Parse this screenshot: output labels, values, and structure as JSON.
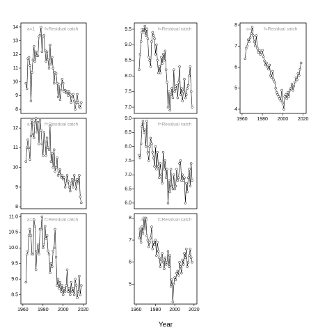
{
  "chart_data": [
    {
      "type": "line",
      "annotations": [
        "a=1",
        "f=Residual catch"
      ],
      "x": [
        1963,
        1964,
        1965,
        1966,
        1967,
        1968,
        1969,
        1970,
        1971,
        1972,
        1973,
        1974,
        1975,
        1976,
        1977,
        1978,
        1979,
        1980,
        1981,
        1982,
        1983,
        1984,
        1985,
        1986,
        1987,
        1988,
        1989,
        1990,
        1991,
        1992,
        1993,
        1994,
        1995,
        1996,
        1997,
        1998,
        1999,
        2000,
        2001,
        2002,
        2003,
        2004,
        2005,
        2006,
        2007,
        2008,
        2009,
        2010,
        2011,
        2012,
        2013,
        2014,
        2015,
        2016,
        2017,
        2018
      ],
      "values": [
        9.9,
        9.5,
        11.7,
        11.8,
        11.2,
        8.6,
        10.7,
        11.6,
        12.6,
        11.5,
        12.2,
        11.9,
        11.9,
        13.3,
        13.4,
        14.0,
        12.2,
        13.3,
        13.4,
        12.3,
        11.5,
        12.2,
        11.6,
        11.0,
        12.7,
        11.3,
        11.8,
        11.0,
        9.9,
        10.7,
        10.6,
        9.9,
        8.9,
        9.8,
        8.7,
        9.4,
        10.2,
        9.9,
        9.3,
        9.4,
        9.2,
        9.3,
        9.0,
        9.3,
        9.1,
        8.5,
        8.9,
        9.1,
        8.6,
        8.0,
        8.5,
        9.1,
        8.5,
        8.2,
        8.1,
        8.5
      ],
      "xlim": [
        1958,
        2023
      ],
      "ylim": [
        7.7,
        14.3
      ],
      "yticks": [
        8,
        9,
        10,
        11,
        12,
        13,
        14
      ]
    },
    {
      "type": "line",
      "annotations": [
        "a=1",
        "f=Residual catch"
      ],
      "x": [
        1963,
        1964,
        1965,
        1966,
        1967,
        1968,
        1969,
        1970,
        1971,
        1972,
        1973,
        1974,
        1975,
        1976,
        1977,
        1978,
        1979,
        1980,
        1981,
        1982,
        1983,
        1984,
        1985,
        1986,
        1987,
        1988,
        1989,
        1990,
        1991,
        1992,
        1993,
        1994,
        1995,
        1996,
        1997,
        1998,
        1999,
        2000,
        2001,
        2002,
        2003,
        2004,
        2005,
        2006,
        2007,
        2008,
        2009,
        2010,
        2011,
        2012,
        2013,
        2014,
        2015,
        2016,
        2017,
        2018
      ],
      "values": [
        8.2,
        8.7,
        9.1,
        9.4,
        9.5,
        9.4,
        9.6,
        9.3,
        9.5,
        9.2,
        8.6,
        8.5,
        8.3,
        9.1,
        9.4,
        9.3,
        9.2,
        8.7,
        9.0,
        8.5,
        8.1,
        8.3,
        8.1,
        8.6,
        8.4,
        8.7,
        8.5,
        8.8,
        8.2,
        7.8,
        7.0,
        7.5,
        6.9,
        7.4,
        7.6,
        7.3,
        8.2,
        7.5,
        7.6,
        7.7,
        7.3,
        7.8,
        8.3,
        7.4,
        7.6,
        7.2,
        7.5,
        7.9,
        7.3,
        7.4,
        7.6,
        7.7,
        8.0,
        8.3,
        7.5,
        7.0
      ],
      "xlim": [
        1958,
        2023
      ],
      "ylim": [
        6.8,
        9.7
      ],
      "yticks": [
        {
          "value": 7,
          "label": "7.0"
        },
        7.5,
        {
          "value": 8,
          "label": "8.0"
        },
        8.5,
        {
          "value": 9,
          "label": "9.0"
        },
        9.5
      ]
    },
    {
      "type": "line",
      "annotations": [
        "a=1",
        "f=Residual catch"
      ],
      "x": [
        1963,
        1964,
        1965,
        1966,
        1967,
        1968,
        1969,
        1970,
        1971,
        1972,
        1973,
        1974,
        1975,
        1976,
        1977,
        1978,
        1979,
        1980,
        1981,
        1982,
        1983,
        1984,
        1985,
        1986,
        1987,
        1988,
        1989,
        1990,
        1991,
        1992,
        1993,
        1994,
        1995,
        1996,
        1997,
        1998,
        1999,
        2000,
        2001,
        2002,
        2003,
        2004,
        2005,
        2006,
        2007,
        2008,
        2009,
        2010,
        2011,
        2012,
        2013,
        2014,
        2015,
        2016,
        2017,
        2018
      ],
      "values": [
        6.4,
        6.9,
        7.0,
        7.3,
        7.2,
        7.4,
        7.6,
        7.9,
        7.5,
        7.2,
        7.0,
        7.5,
        6.9,
        6.7,
        6.8,
        6.6,
        6.7,
        6.8,
        6.5,
        6.3,
        6.1,
        6.2,
        6.0,
        5.9,
        6.1,
        5.6,
        5.5,
        5.8,
        5.4,
        5.3,
        5.0,
        4.8,
        4.7,
        4.6,
        4.5,
        4.4,
        4.9,
        4.3,
        4.0,
        4.6,
        4.7,
        4.5,
        4.8,
        4.6,
        4.9,
        5.0,
        5.2,
        4.9,
        5.1,
        5.3,
        5.5,
        5.4,
        5.7,
        5.6,
        5.9,
        6.2
      ],
      "xlim": [
        1958,
        2023
      ],
      "ylim": [
        3.8,
        8.1
      ],
      "yticks": [
        4,
        5,
        6,
        7,
        8
      ],
      "xticks": [
        1960,
        1980,
        2000,
        2020
      ]
    },
    {
      "type": "line",
      "annotations": [
        "a=1",
        "f=Residual catch"
      ],
      "x": [
        1963,
        1964,
        1965,
        1966,
        1967,
        1968,
        1969,
        1970,
        1971,
        1972,
        1973,
        1974,
        1975,
        1976,
        1977,
        1978,
        1979,
        1980,
        1981,
        1982,
        1983,
        1984,
        1985,
        1986,
        1987,
        1988,
        1989,
        1990,
        1991,
        1992,
        1993,
        1994,
        1995,
        1996,
        1997,
        1998,
        1999,
        2000,
        2001,
        2002,
        2003,
        2004,
        2005,
        2006,
        2007,
        2008,
        2009,
        2010,
        2011,
        2012,
        2013,
        2014,
        2015,
        2016,
        2017,
        2018
      ],
      "values": [
        10.3,
        11.0,
        11.4,
        11.0,
        10.4,
        11.6,
        12.4,
        11.7,
        11.5,
        12.3,
        12.5,
        11.8,
        12.3,
        11.2,
        12.4,
        11.9,
        11.2,
        10.6,
        11.8,
        11.3,
        10.6,
        11.5,
        11.0,
        10.9,
        12.1,
        10.3,
        10.7,
        10.0,
        10.9,
        9.8,
        10.0,
        10.5,
        9.6,
        9.7,
        9.9,
        9.5,
        9.6,
        9.4,
        9.5,
        9.0,
        9.2,
        9.6,
        9.3,
        9.0,
        8.8,
        9.2,
        9.4,
        9.0,
        9.6,
        9.3,
        8.9,
        9.4,
        9.2,
        9.6,
        8.5,
        8.2
      ],
      "xlim": [
        1958,
        2023
      ],
      "ylim": [
        7.9,
        12.5
      ],
      "yticks": [
        8,
        9,
        10,
        11,
        12
      ]
    },
    {
      "type": "line",
      "annotations": [
        "a=1",
        "f=Residual catch"
      ],
      "x": [
        1963,
        1964,
        1965,
        1966,
        1967,
        1968,
        1969,
        1970,
        1971,
        1972,
        1973,
        1974,
        1975,
        1976,
        1977,
        1978,
        1979,
        1980,
        1981,
        1982,
        1983,
        1984,
        1985,
        1986,
        1987,
        1988,
        1989,
        1990,
        1991,
        1992,
        1993,
        1994,
        1995,
        1996,
        1997,
        1998,
        1999,
        2000,
        2001,
        2002,
        2003,
        2004,
        2005,
        2006,
        2007,
        2008,
        2009,
        2010,
        2011,
        2012,
        2013,
        2014,
        2015,
        2016,
        2017,
        2018
      ],
      "values": [
        7.7,
        7.6,
        8.1,
        8.7,
        8.9,
        8.5,
        8.6,
        8.0,
        8.9,
        7.8,
        7.5,
        8.0,
        8.3,
        8.1,
        7.8,
        7.6,
        7.3,
        8.0,
        7.2,
        7.8,
        7.3,
        6.9,
        7.4,
        7.0,
        6.7,
        7.8,
        7.2,
        7.5,
        6.9,
        7.2,
        6.0,
        6.8,
        6.4,
        7.2,
        6.6,
        6.5,
        7.0,
        6.5,
        6.6,
        7.2,
        6.8,
        6.9,
        7.4,
        7.5,
        6.8,
        7.0,
        6.8,
        6.9,
        6.0,
        6.7,
        6.4,
        6.9,
        7.2,
        6.6,
        7.4,
        6.8
      ],
      "xlim": [
        1958,
        2023
      ],
      "ylim": [
        5.8,
        9.0
      ],
      "yticks": [
        {
          "value": 6,
          "label": "6.0"
        },
        6.5,
        {
          "value": 7,
          "label": "7.0"
        },
        7.5,
        {
          "value": 8,
          "label": "8.0"
        },
        8.5,
        {
          "value": 9,
          "label": "9.0"
        }
      ]
    },
    {
      "type": "line",
      "annotations": [
        "a=1",
        "f=Residual catch"
      ],
      "x": [
        1963,
        1964,
        1965,
        1966,
        1967,
        1968,
        1969,
        1970,
        1971,
        1972,
        1973,
        1974,
        1975,
        1976,
        1977,
        1978,
        1979,
        1980,
        1981,
        1982,
        1983,
        1984,
        1985,
        1986,
        1987,
        1988,
        1989,
        1990,
        1991,
        1992,
        1993,
        1994,
        1995,
        1996,
        1997,
        1998,
        1999,
        2000,
        2001,
        2002,
        2003,
        2004,
        2005,
        2006,
        2007,
        2008,
        2009,
        2010,
        2011,
        2012,
        2013,
        2014,
        2015,
        2016,
        2017,
        2018
      ],
      "values": [
        8.9,
        9.8,
        9.9,
        10.4,
        10.6,
        10.4,
        9.8,
        9.8,
        10.9,
        10.7,
        9.3,
        9.9,
        10.1,
        9.8,
        10.6,
        10.6,
        11.0,
        10.0,
        10.1,
        10.7,
        10.3,
        10.4,
        9.9,
        9.8,
        9.2,
        9.5,
        9.4,
        9.9,
        10.0,
        10.6,
        9.7,
        8.8,
        9.0,
        8.7,
        8.9,
        8.6,
        8.8,
        8.5,
        8.7,
        8.6,
        8.8,
        9.3,
        8.6,
        8.7,
        8.5,
        8.9,
        8.6,
        8.7,
        8.5,
        9.0,
        8.8,
        8.4,
        8.6,
        9.1,
        8.5,
        8.8
      ],
      "xlim": [
        1958,
        2023
      ],
      "ylim": [
        8.2,
        11.1
      ],
      "yticks": [
        8.5,
        {
          "value": 9,
          "label": "9.0"
        },
        9.5,
        {
          "value": 10,
          "label": "10.0"
        },
        10.5,
        {
          "value": 11,
          "label": "11.0"
        }
      ],
      "xticks": [
        1960,
        1980,
        2000,
        2020
      ]
    },
    {
      "type": "line",
      "annotations": [
        "a=1",
        "f=Residual catch"
      ],
      "xlabel": "Year",
      "x": [
        1963,
        1964,
        1965,
        1966,
        1967,
        1968,
        1969,
        1970,
        1971,
        1972,
        1973,
        1974,
        1975,
        1976,
        1977,
        1978,
        1979,
        1980,
        1981,
        1982,
        1983,
        1984,
        1985,
        1986,
        1987,
        1988,
        1989,
        1990,
        1991,
        1992,
        1993,
        1994,
        1995,
        1996,
        1997,
        1998,
        1999,
        2000,
        2001,
        2002,
        2003,
        2004,
        2005,
        2006,
        2007,
        2008,
        2009,
        2010,
        2011,
        2012,
        2013,
        2014,
        2015,
        2016,
        2017,
        2018
      ],
      "values": [
        7.1,
        7.5,
        6.9,
        7.6,
        7.3,
        8.0,
        7.5,
        8.0,
        7.2,
        7.0,
        6.7,
        6.9,
        7.1,
        7.6,
        6.6,
        6.9,
        6.8,
        7.0,
        6.3,
        6.9,
        6.5,
        6.2,
        5.8,
        6.1,
        6.4,
        6.0,
        5.7,
        6.2,
        5.9,
        6.0,
        6.5,
        5.8,
        6.3,
        4.9,
        5.2,
        4.2,
        5.0,
        5.3,
        5.2,
        5.5,
        5.6,
        5.4,
        6.0,
        5.8,
        5.5,
        6.1,
        5.9,
        6.4,
        6.2,
        6.6,
        5.8,
        6.0,
        6.3,
        6.6,
        6.2,
        6.0
      ],
      "xlim": [
        1958,
        2023
      ],
      "ylim": [
        4.1,
        8.2
      ],
      "yticks": [
        5,
        6,
        7,
        8
      ],
      "xticks": [
        1960,
        1980,
        2000,
        2020
      ]
    }
  ]
}
